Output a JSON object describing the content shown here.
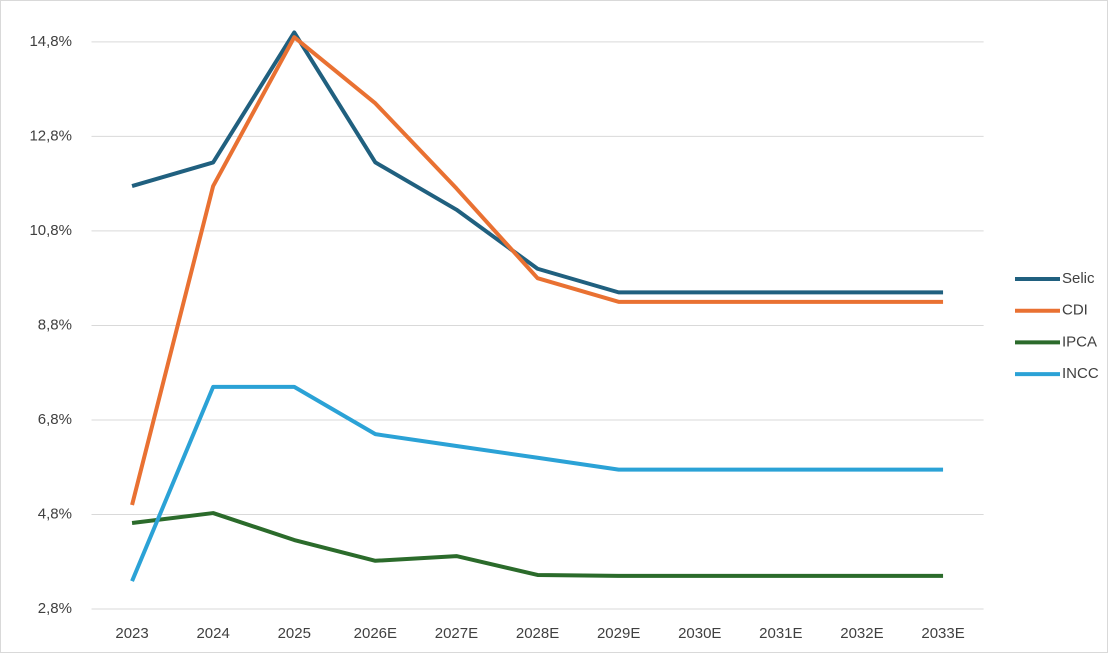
{
  "chart_data": {
    "type": "line",
    "categories": [
      "2023",
      "2024",
      "2025",
      "2026E",
      "2027E",
      "2028E",
      "2029E",
      "2030E",
      "2031E",
      "2032E",
      "2033E"
    ],
    "series": [
      {
        "name": "Selic",
        "color": "#20607f",
        "values": [
          11.75,
          12.25,
          15.0,
          12.25,
          11.25,
          10.0,
          9.5,
          9.5,
          9.5,
          9.5,
          9.5
        ]
      },
      {
        "name": "CDI",
        "color": "#e97132",
        "values": [
          5.0,
          11.75,
          14.9,
          13.5,
          11.7,
          9.8,
          9.3,
          9.3,
          9.3,
          9.3,
          9.3
        ]
      },
      {
        "name": "IPCA",
        "color": "#2b6b2b",
        "values": [
          4.62,
          4.83,
          4.26,
          3.82,
          3.92,
          3.52,
          3.5,
          3.5,
          3.5,
          3.5,
          3.5
        ]
      },
      {
        "name": "INCC",
        "color": "#2ba2d6",
        "values": [
          3.39,
          7.5,
          7.5,
          6.5,
          6.25,
          6.0,
          5.75,
          5.75,
          5.75,
          5.75,
          5.75
        ]
      }
    ],
    "ylim": [
      2.8,
      15.2
    ],
    "yticks": [
      {
        "value": 2.8,
        "label": "2,8%"
      },
      {
        "value": 4.8,
        "label": "4,8%"
      },
      {
        "value": 6.8,
        "label": "6,8%"
      },
      {
        "value": 8.8,
        "label": "8,8%"
      },
      {
        "value": 10.8,
        "label": "10,8%"
      },
      {
        "value": 12.8,
        "label": "12,8%"
      },
      {
        "value": 14.8,
        "label": "14,8%"
      }
    ],
    "grid": true,
    "legend": "right"
  }
}
